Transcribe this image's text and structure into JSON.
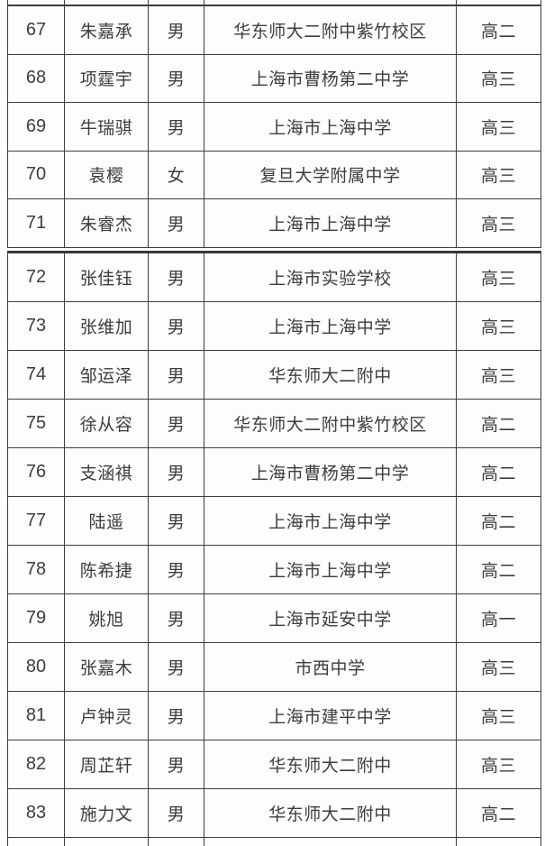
{
  "colors": {
    "border": "#3e3e3e",
    "text": "#3d3d3d",
    "background": "#fdfdfd"
  },
  "table": {
    "rows": [
      {
        "number": "67",
        "name": "朱嘉承",
        "gender": "男",
        "school": "华东师大二附中紫竹校区",
        "grade": "高二"
      },
      {
        "number": "68",
        "name": "项霆宇",
        "gender": "男",
        "school": "上海市曹杨第二中学",
        "grade": "高三"
      },
      {
        "number": "69",
        "name": "牛瑞骐",
        "gender": "男",
        "school": "上海市上海中学",
        "grade": "高三"
      },
      {
        "number": "70",
        "name": "袁樱",
        "gender": "女",
        "school": "复旦大学附属中学",
        "grade": "高三"
      },
      {
        "number": "71",
        "name": "朱睿杰",
        "gender": "男",
        "school": "上海市上海中学",
        "grade": "高三"
      },
      {
        "number": "72",
        "name": "张佳钰",
        "gender": "男",
        "school": "上海市实验学校",
        "grade": "高三"
      },
      {
        "number": "73",
        "name": "张维加",
        "gender": "男",
        "school": "上海市上海中学",
        "grade": "高三"
      },
      {
        "number": "74",
        "name": "邹运泽",
        "gender": "男",
        "school": "华东师大二附中",
        "grade": "高三"
      },
      {
        "number": "75",
        "name": "徐从容",
        "gender": "男",
        "school": "华东师大二附中紫竹校区",
        "grade": "高二"
      },
      {
        "number": "76",
        "name": "支涵祺",
        "gender": "男",
        "school": "上海市曹杨第二中学",
        "grade": "高二"
      },
      {
        "number": "77",
        "name": "陆遥",
        "gender": "男",
        "school": "上海市上海中学",
        "grade": "高二"
      },
      {
        "number": "78",
        "name": "陈希捷",
        "gender": "男",
        "school": "上海市上海中学",
        "grade": "高二"
      },
      {
        "number": "79",
        "name": "姚旭",
        "gender": "男",
        "school": "上海市延安中学",
        "grade": "高一"
      },
      {
        "number": "80",
        "name": "张嘉木",
        "gender": "男",
        "school": "市西中学",
        "grade": "高三"
      },
      {
        "number": "81",
        "name": "卢钟灵",
        "gender": "男",
        "school": "上海市建平中学",
        "grade": "高三"
      },
      {
        "number": "82",
        "name": "周芷轩",
        "gender": "男",
        "school": "华东师大二附中",
        "grade": "高三"
      },
      {
        "number": "83",
        "name": "施力文",
        "gender": "男",
        "school": "华东师大二附中",
        "grade": "高二"
      }
    ],
    "group_split_index": 5
  }
}
